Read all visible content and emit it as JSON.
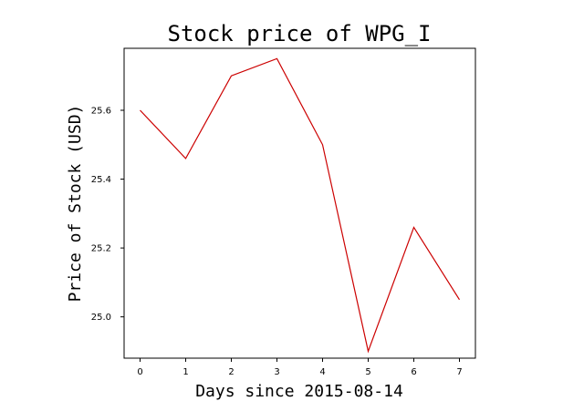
{
  "chart_data": {
    "type": "line",
    "title": "Stock price of WPG_I",
    "xlabel": "Days since 2015-08-14",
    "ylabel": "Price of Stock (USD)",
    "x": [
      0,
      1,
      2,
      3,
      4,
      5,
      6,
      7
    ],
    "x_ticks": [
      "0",
      "1",
      "2",
      "3",
      "4",
      "5",
      "6",
      "7"
    ],
    "y_ticks": [
      "25.0",
      "25.2",
      "25.4",
      "25.6"
    ],
    "xlim": [
      -0.35,
      7.35
    ],
    "ylim": [
      24.88,
      25.78
    ],
    "series": [
      {
        "color": "#cc0000",
        "values": [
          25.6,
          25.46,
          25.7,
          25.75,
          25.5,
          24.9,
          25.26,
          25.05
        ]
      }
    ],
    "grid": false,
    "legend": false
  }
}
